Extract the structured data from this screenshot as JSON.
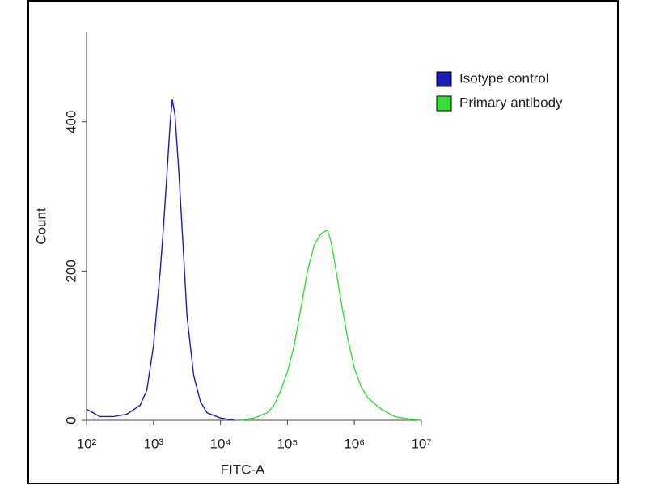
{
  "chart_data": {
    "type": "line",
    "xlabel": "FITC-A",
    "ylabel": "Count",
    "xscale": "log",
    "xlim": [
      100,
      10000000
    ],
    "xticks": [
      {
        "value": 100,
        "label": "10²"
      },
      {
        "value": 1000,
        "label": "10³"
      },
      {
        "value": 10000,
        "label": "10⁴"
      },
      {
        "value": 100000,
        "label": "10⁵"
      },
      {
        "value": 1000000,
        "label": "10⁶"
      },
      {
        "value": 10000000,
        "label": "10⁷"
      }
    ],
    "ylim": [
      0,
      520
    ],
    "yticks": [
      0,
      200,
      400
    ],
    "legend": "upper right",
    "series": [
      {
        "name": "Isotype control",
        "color": "#1c1cb8",
        "x": [
          100,
          158,
          251,
          398,
          631,
          794,
          1000,
          1122,
          1259,
          1413,
          1585,
          1778,
          1905,
          2089,
          2399,
          2818,
          3162,
          3981,
          5012,
          6310,
          10000,
          15849
        ],
        "values": [
          15,
          5,
          5,
          8,
          20,
          40,
          100,
          150,
          200,
          260,
          330,
          400,
          430,
          410,
          330,
          220,
          140,
          60,
          25,
          10,
          3,
          0
        ]
      },
      {
        "name": "Primary antibody",
        "color": "#33e033",
        "x": [
          19953,
          31623,
          50119,
          63096,
          79433,
          100000,
          125893,
          158489,
          199526,
          251189,
          316228,
          398107,
          446684,
          501187,
          630957,
          794328,
          1000000,
          1258925,
          1584893,
          2511886,
          3981072,
          6309573,
          10000000
        ],
        "values": [
          0,
          3,
          10,
          20,
          40,
          65,
          100,
          150,
          200,
          235,
          250,
          255,
          240,
          215,
          160,
          110,
          70,
          45,
          30,
          15,
          5,
          2,
          0
        ]
      }
    ]
  }
}
